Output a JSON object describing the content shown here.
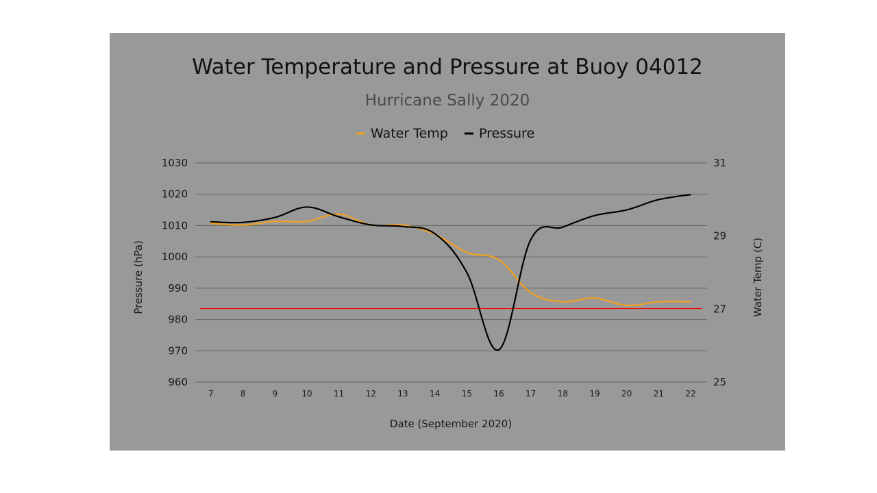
{
  "chart_data": {
    "type": "line",
    "title": "Water Temperature and Pressure at Buoy 04012",
    "subtitle": "Hurricane Sally 2020",
    "xlabel": "Date (September 2020)",
    "ylabel_left": "Pressure (hPa)",
    "ylabel_right": "Water Temp (C)",
    "x": [
      "7",
      "8",
      "9",
      "10",
      "11",
      "12",
      "13",
      "14",
      "15",
      "16",
      "17",
      "18",
      "19",
      "20",
      "21",
      "22"
    ],
    "ylim_left": [
      960,
      1030
    ],
    "yticks_left": [
      "960",
      "970",
      "980",
      "990",
      "1000",
      "1010",
      "1020",
      "1030"
    ],
    "ylim_right": [
      25,
      31
    ],
    "yticks_right": [
      "25",
      "27",
      "29",
      "31"
    ],
    "legend_position": "top-center",
    "grid": true,
    "reference_line": {
      "axis": "left",
      "value": 983.5,
      "color": "#ff0000"
    },
    "series": [
      {
        "name": "Water Temp",
        "axis": "right",
        "color": "#f0a020",
        "values": [
          29.35,
          29.3,
          29.4,
          29.4,
          29.6,
          29.3,
          29.3,
          29.05,
          28.55,
          28.35,
          27.45,
          27.2,
          27.3,
          27.1,
          27.2,
          27.2
        ]
      },
      {
        "name": "Pressure",
        "axis": "left",
        "color": "#000000",
        "values": [
          1011.2,
          1011,
          1012.6,
          1015.9,
          1012.8,
          1010.2,
          1009.7,
          1007.4,
          995,
          970.3,
          1005.5,
          1009.5,
          1013.2,
          1015,
          1018.3,
          1019.9
        ]
      }
    ]
  }
}
